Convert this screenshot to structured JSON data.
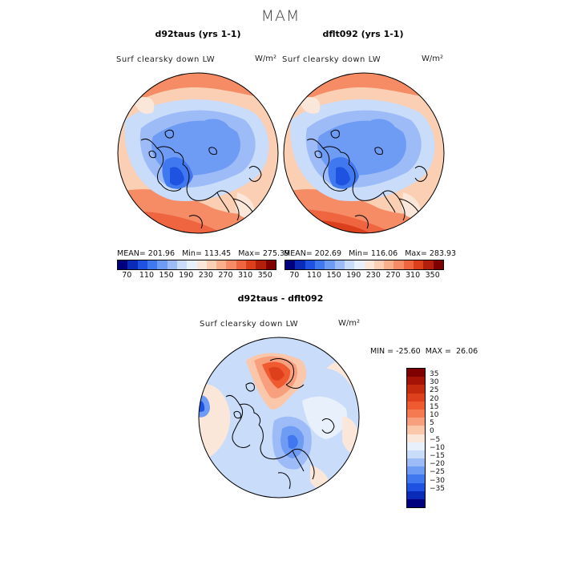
{
  "main_title": "MAM",
  "panels": [
    {
      "title": "d92taus (yrs 1-1)",
      "subtitle": "Surf clearsky down LW",
      "units": "W/m²",
      "stats": {
        "mean": "MEAN= 201.96",
        "min": "Min= 113.45",
        "max": "Max= 275.39"
      }
    },
    {
      "title": "dflt092 (yrs 1-1)",
      "subtitle": "Surf clearsky down LW",
      "units": "W/m²",
      "stats": {
        "mean": "MEAN= 202.69",
        "min": "Min= 116.06",
        "max": "Max= 283.93"
      }
    },
    {
      "title": "d92taus - dflt092",
      "subtitle": "Surf clearsky down LW",
      "units": "W/m²",
      "minmax": "MIN = -25.60  MAX =  26.06"
    }
  ],
  "top_colorbar": {
    "ticks": [
      "70",
      "110",
      "150",
      "190",
      "230",
      "270",
      "310",
      "350"
    ],
    "colors": [
      "#00007f",
      "#0a2ab8",
      "#1f52e0",
      "#3f78ef",
      "#6e9cf5",
      "#9dbcf7",
      "#c9dcfa",
      "#e8f0fb",
      "#fbe7d9",
      "#fbcfb3",
      "#f9af8c",
      "#f58c66",
      "#ee6540",
      "#db3f1c",
      "#b21f0a",
      "#7f0000"
    ]
  },
  "diff_colorbar": {
    "ticks": [
      "35",
      "30",
      "25",
      "20",
      "15",
      "10",
      "5",
      "0",
      "−5",
      "−10",
      "−15",
      "−20",
      "−25",
      "−30",
      "−35"
    ],
    "colors": [
      "#7f0000",
      "#a51306",
      "#c42a0d",
      "#de3f1c",
      "#ef5a30",
      "#f57a52",
      "#f8a07e",
      "#fbc7aa",
      "#fbe7d9",
      "#e8f0fb",
      "#c9dcfa",
      "#9dbcf7",
      "#6e9cf5",
      "#3f78ef",
      "#1f52e0",
      "#0a2ab8",
      "#00007f"
    ]
  }
}
